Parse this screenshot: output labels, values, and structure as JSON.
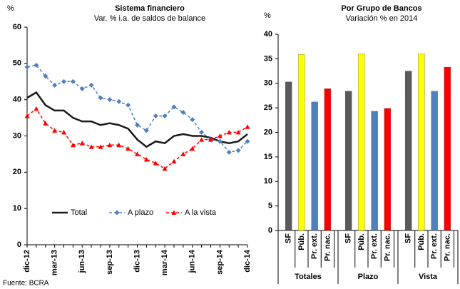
{
  "chart_data": [
    {
      "type": "line",
      "title": "Sistema financiero",
      "subtitle": "Var. % i.a. de saldos de balance",
      "ylabel": "%",
      "categories": [
        "dic-12",
        null,
        null,
        "mar-13",
        null,
        null,
        "jun-13",
        null,
        null,
        "sep-13",
        null,
        null,
        "dic-13",
        null,
        null,
        "mar-14",
        null,
        null,
        "jun-14",
        null,
        null,
        "sep-14",
        null,
        null,
        "dic-14"
      ],
      "series": [
        {
          "name": "Total",
          "color": "#1a1a1a",
          "style": "solid",
          "marker": "none",
          "values": [
            40.5,
            42,
            38.5,
            37,
            37,
            35,
            34,
            34,
            33,
            33.5,
            33,
            32,
            29,
            27,
            28.5,
            28,
            30,
            30.5,
            30,
            30,
            29.5,
            28.5,
            28,
            28.5,
            30.5
          ]
        },
        {
          "name": "A plazo",
          "color": "#4f81bd",
          "style": "dashed",
          "marker": "diamond",
          "values": [
            49,
            49.5,
            46.5,
            44,
            45,
            45,
            43,
            44,
            40.5,
            40,
            39.5,
            38.5,
            33,
            31.5,
            35.5,
            35.5,
            38,
            36.5,
            34.5,
            31,
            29,
            28.5,
            25.5,
            26,
            28.5
          ]
        },
        {
          "name": "A la vista",
          "color": "#ff0000",
          "style": "dashed",
          "marker": "triangle",
          "values": [
            35.5,
            37.5,
            33.5,
            31.5,
            31,
            27.5,
            28,
            27,
            27,
            27.5,
            27.5,
            26.5,
            25,
            23.5,
            22.5,
            21,
            23,
            25,
            26.5,
            29,
            29,
            30,
            31,
            31,
            32.5
          ]
        }
      ],
      "ylim": [
        0,
        60
      ],
      "yticks": [
        0,
        10,
        20,
        30,
        40,
        50,
        60
      ],
      "grid": false,
      "legend": "lower left"
    },
    {
      "type": "grouped-bar",
      "title": "Por Grupo de Bancos",
      "subtitle": "Variación % en 2014",
      "ylabel": "%",
      "categories": [
        "SF",
        "Púb.",
        "Pr. ext.",
        "Pr. nac."
      ],
      "colors": [
        "#595959",
        "#ffff00",
        "#4f81bd",
        "#ff0000"
      ],
      "groups": [
        {
          "name": "Totales",
          "values": [
            30.3,
            35.9,
            26.2,
            28.9
          ]
        },
        {
          "name": "Plazo",
          "values": [
            28.4,
            36,
            24.3,
            24.9
          ]
        },
        {
          "name": "Vista",
          "values": [
            32.5,
            36,
            28.4,
            33.3
          ]
        }
      ],
      "ylim": [
        0,
        40
      ],
      "yticks": [
        0,
        5,
        10,
        15,
        20,
        25,
        30,
        35,
        40
      ],
      "grid": false
    }
  ],
  "source": "Fuente: BCRA"
}
